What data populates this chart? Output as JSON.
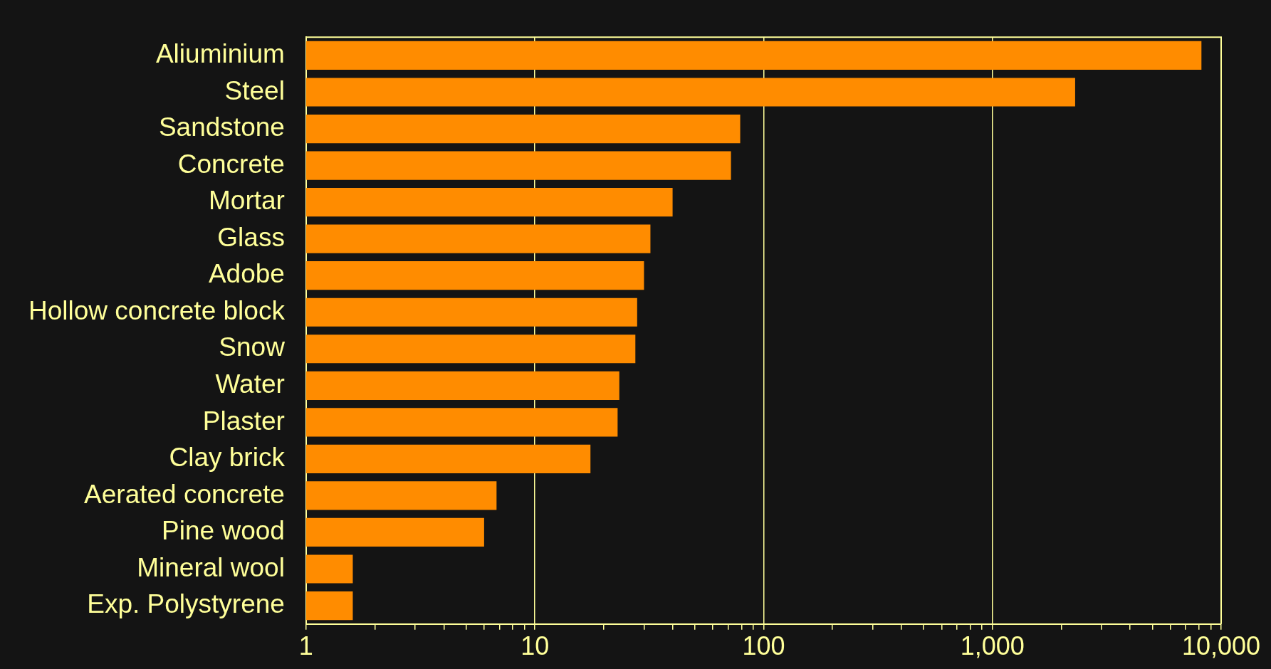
{
  "chart_data": {
    "type": "bar",
    "orientation": "horizontal",
    "log": "x",
    "color": "#ff8c00",
    "categories": [
      "Aliuminium",
      "Steel",
      "Sandstone",
      "Concrete",
      "Mortar",
      "Glass",
      "Adobe",
      "Hollow concrete block",
      "Snow",
      "Water",
      "Plaster",
      "Clay brick",
      "Aerated concrete",
      "Pine wood",
      "Mineral wool",
      "Exp. Polystyrene"
    ],
    "values": [
      8200,
      2300,
      79,
      72,
      40,
      32,
      30,
      28,
      27.5,
      23.4,
      23,
      17.5,
      6.8,
      6,
      1.6,
      1.6
    ],
    "xlim": [
      1,
      10000
    ],
    "xticks": [
      1,
      {
        "value": 2,
        "label": null
      },
      {
        "value": 3,
        "label": null
      },
      {
        "value": 4,
        "label": null
      },
      {
        "value": 5,
        "label": null
      },
      {
        "value": 6,
        "label": null
      },
      {
        "value": 7,
        "label": null
      },
      {
        "value": 8,
        "label": null
      },
      {
        "value": 9,
        "label": null
      },
      10,
      {
        "value": 20,
        "label": null
      },
      {
        "value": 30,
        "label": null
      },
      {
        "value": 40,
        "label": null
      },
      {
        "value": 50,
        "label": null
      },
      {
        "value": 60,
        "label": null
      },
      {
        "value": 70,
        "label": null
      },
      {
        "value": 80,
        "label": null
      },
      {
        "value": 90,
        "label": null
      },
      100,
      {
        "value": 200,
        "label": null
      },
      {
        "value": 300,
        "label": null
      },
      {
        "value": 400,
        "label": null
      },
      {
        "value": 500,
        "label": null
      },
      {
        "value": 600,
        "label": null
      },
      {
        "value": 700,
        "label": null
      },
      {
        "value": 800,
        "label": null
      },
      {
        "value": 900,
        "label": null
      },
      {
        "value": 1000,
        "label": "1,000"
      },
      {
        "value": 2000,
        "label": null
      },
      {
        "value": 3000,
        "label": null
      },
      {
        "value": 4000,
        "label": null
      },
      {
        "value": 5000,
        "label": null
      },
      {
        "value": 6000,
        "label": null
      },
      {
        "value": 7000,
        "label": null
      },
      {
        "value": 8000,
        "label": null
      },
      {
        "value": 9000,
        "label": null
      },
      {
        "value": 10000,
        "label": "10,000"
      }
    ],
    "grid": "x",
    "legend": false
  }
}
